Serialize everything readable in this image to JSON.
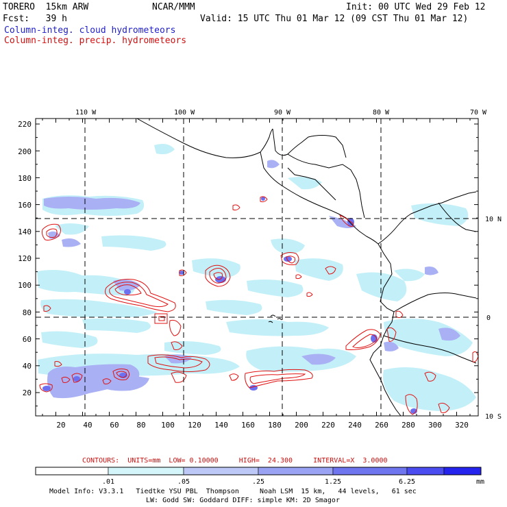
{
  "header": {
    "model": "TORERO  15km ARW",
    "institution": "NCAR/MMM",
    "init": "Init: 00 UTC Wed 29 Feb 12",
    "fcst": "Fcst:   39 h",
    "valid": "Valid: 15 UTC Thu 01 Mar 12 (09 CST Thu 01 Mar 12)",
    "field_cloud": "Column-integ. cloud hydrometeors",
    "field_precip": "Column-integ. precip. hydrometeors"
  },
  "map": {
    "lon_labels": [
      "110 W",
      "100 W",
      "90 W",
      "80 W",
      "70 W"
    ],
    "lat_labels": [
      "10 N",
      "0",
      "10 S"
    ],
    "y_ticks": [
      "220",
      "200",
      "180",
      "160",
      "140",
      "120",
      "100",
      "80",
      "60",
      "40",
      "20"
    ],
    "x_ticks": [
      "20",
      "40",
      "60",
      "80",
      "100",
      "120",
      "140",
      "160",
      "180",
      "200",
      "220",
      "240",
      "260",
      "280",
      "300",
      "320"
    ],
    "colors": {
      "cloud_light": "#bfeff7",
      "cloud_mid": "#a9b4f5",
      "cloud_strong": "#6c70f0",
      "precip_contour": "#e01010",
      "coast": "#000000"
    }
  },
  "contour_info": {
    "label": "CONTOURS:  UNITS=mm  LOW= 0.10000     HIGH=  24.300     INTERVAL=X  3.0000"
  },
  "colorbar": {
    "tick_labels": [
      ".01",
      ".05",
      ".25",
      "1.25",
      "6.25"
    ],
    "units": "mm",
    "colors": [
      "#ffffff",
      "#d4f6fb",
      "#bdc8f6",
      "#9aa3f3",
      "#6f75ef",
      "#4b4df0",
      "#2424ee"
    ]
  },
  "footer": {
    "line1": "Model Info: V3.3.1   Tiedtke YSU PBL  Thompson     Noah LSM  15 km,   44 levels,   61 sec",
    "line2": "LW: Godd SW: Goddard DIFF: simple KM: 2D Smagor"
  }
}
